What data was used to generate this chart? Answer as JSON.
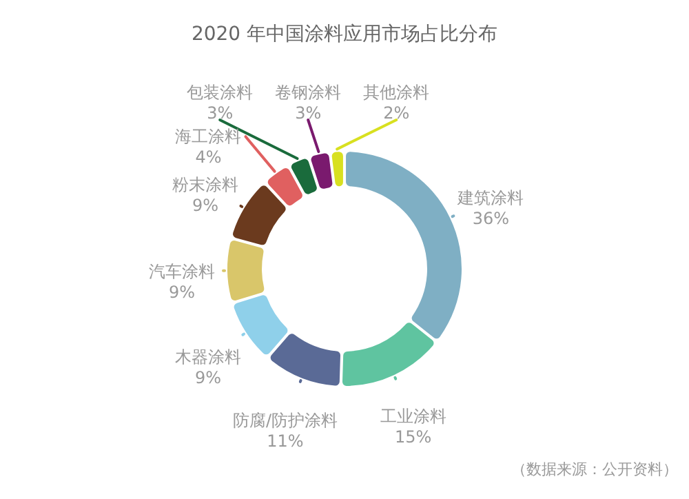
{
  "chart_data": {
    "type": "donut",
    "title": "2020 年中国涂料应用市场占比分布",
    "categories": [
      "建筑涂料",
      "工业涂料",
      "防腐/防护涂料",
      "木器涂料",
      "汽车涂料",
      "粉末涂料",
      "海工涂料",
      "包装涂料",
      "卷钢涂料",
      "其他涂料"
    ],
    "values": [
      36,
      15,
      11,
      9,
      9,
      9,
      4,
      3,
      3,
      2
    ],
    "value_labels": [
      "36%",
      "15%",
      "11%",
      "9%",
      "9%",
      "9%",
      "4%",
      "3%",
      "3%",
      "2%"
    ],
    "colors": [
      "#7fafc4",
      "#5fc4a0",
      "#5a6a96",
      "#8fd0ea",
      "#d9c66a",
      "#6b3a1e",
      "#e06060",
      "#1a6b3c",
      "#7a1a6e",
      "#d8e020"
    ],
    "annotations": [
      "（数据来源：公开资料）"
    ]
  }
}
